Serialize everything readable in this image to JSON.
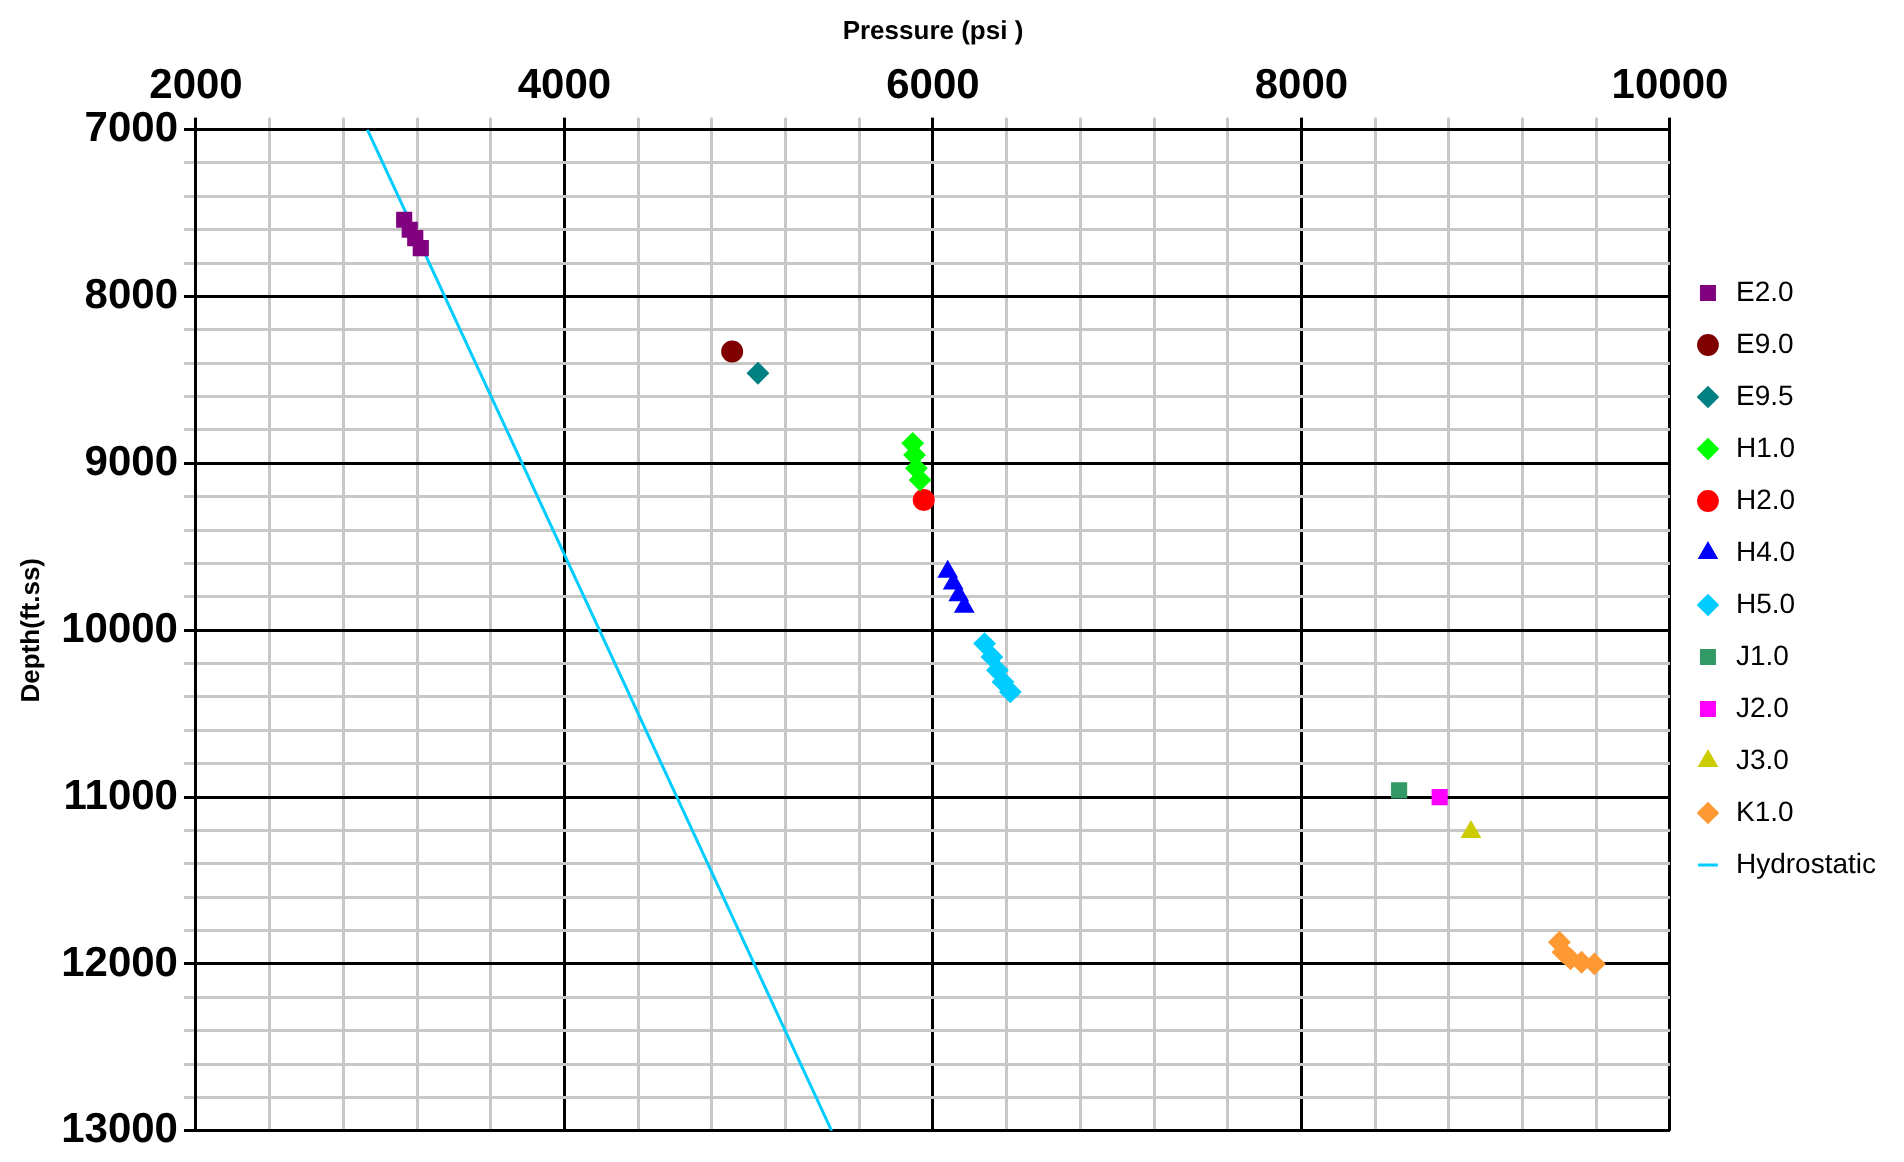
{
  "chart_data": {
    "type": "scatter",
    "xlabel": "Pressure (psi )",
    "ylabel": "Depth(ft.ss)",
    "xlim": [
      2000,
      10000
    ],
    "xticks": [
      2000,
      {
        "value": 2400,
        "label": null
      },
      {
        "value": 2800,
        "label": null
      },
      {
        "value": 3200,
        "label": null
      },
      {
        "value": 3600,
        "label": null
      },
      4000,
      {
        "value": 4400,
        "label": null
      },
      {
        "value": 4800,
        "label": null
      },
      {
        "value": 5200,
        "label": null
      },
      {
        "value": 5600,
        "label": null
      },
      6000,
      {
        "value": 6400,
        "label": null
      },
      {
        "value": 6800,
        "label": null
      },
      {
        "value": 7200,
        "label": null
      },
      {
        "value": 7600,
        "label": null
      },
      8000,
      {
        "value": 8400,
        "label": null
      },
      {
        "value": 8800,
        "label": null
      },
      {
        "value": 9200,
        "label": null
      },
      {
        "value": 9600,
        "label": null
      },
      10000
    ],
    "ylim": [
      13000,
      7000
    ],
    "yticks": [
      7000,
      {
        "value": 7200,
        "label": null
      },
      {
        "value": 7400,
        "label": null
      },
      {
        "value": 7600,
        "label": null
      },
      {
        "value": 7800,
        "label": null
      },
      8000,
      {
        "value": 8200,
        "label": null
      },
      {
        "value": 8400,
        "label": null
      },
      {
        "value": 8600,
        "label": null
      },
      {
        "value": 8800,
        "label": null
      },
      9000,
      {
        "value": 9200,
        "label": null
      },
      {
        "value": 9400,
        "label": null
      },
      {
        "value": 9600,
        "label": null
      },
      {
        "value": 9800,
        "label": null
      },
      10000,
      {
        "value": 10200,
        "label": null
      },
      {
        "value": 10400,
        "label": null
      },
      {
        "value": 10600,
        "label": null
      },
      {
        "value": 10800,
        "label": null
      },
      11000,
      {
        "value": 11200,
        "label": null
      },
      {
        "value": 11400,
        "label": null
      },
      {
        "value": 11600,
        "label": null
      },
      {
        "value": 11800,
        "label": null
      },
      12000,
      {
        "value": 12200,
        "label": null
      },
      {
        "value": 12400,
        "label": null
      },
      {
        "value": 12600,
        "label": null
      },
      {
        "value": 12800,
        "label": null
      },
      13000
    ],
    "grid": true,
    "legend": "right",
    "series": [
      {
        "name": "E2.0",
        "color": "#800080",
        "marker": "square",
        "x": [
          3130,
          3160,
          3190,
          3220
        ],
        "values": [
          7540,
          7600,
          7650,
          7710
        ]
      },
      {
        "name": "E9.0",
        "color": "#800000",
        "marker": "circle",
        "x": [
          4910
        ],
        "values": [
          8330
        ]
      },
      {
        "name": "E9.5",
        "color": "#008080",
        "marker": "diamond",
        "x": [
          5050
        ],
        "values": [
          8460
        ]
      },
      {
        "name": "H1.0",
        "color": "#00ff00",
        "marker": "diamond",
        "x": [
          5890,
          5900,
          5910,
          5930
        ],
        "values": [
          8880,
          8950,
          9030,
          9100
        ]
      },
      {
        "name": "H2.0",
        "color": "#ff0000",
        "marker": "circle",
        "x": [
          5950
        ],
        "values": [
          9220
        ]
      },
      {
        "name": "H4.0",
        "color": "#0000ff",
        "marker": "triangle",
        "x": [
          6080,
          6110,
          6140,
          6170
        ],
        "values": [
          9650,
          9720,
          9790,
          9860
        ]
      },
      {
        "name": "H5.0",
        "color": "#00ccff",
        "marker": "diamond",
        "x": [
          6280,
          6320,
          6350,
          6380,
          6420
        ],
        "values": [
          10080,
          10160,
          10240,
          10310,
          10370
        ]
      },
      {
        "name": "J1.0",
        "color": "#339966",
        "marker": "square",
        "x": [
          8530
        ],
        "values": [
          10960
        ]
      },
      {
        "name": "J2.0",
        "color": "#ff00ff",
        "marker": "square",
        "x": [
          8750
        ],
        "values": [
          11000
        ]
      },
      {
        "name": "J3.0",
        "color": "#cccc00",
        "marker": "triangle",
        "x": [
          8920
        ],
        "values": [
          11210
        ]
      },
      {
        "name": "K1.0",
        "color": "#ff9933",
        "marker": "diamond",
        "x": [
          9400,
          9420,
          9460,
          9520,
          9590
        ],
        "values": [
          11870,
          11930,
          11970,
          11990,
          12000
        ]
      },
      {
        "name": "Hydrostatic",
        "type": "line",
        "color": "#00ccff",
        "marker": "none",
        "x": [
          2930,
          5450
        ],
        "values": [
          7000,
          13000
        ]
      }
    ]
  }
}
